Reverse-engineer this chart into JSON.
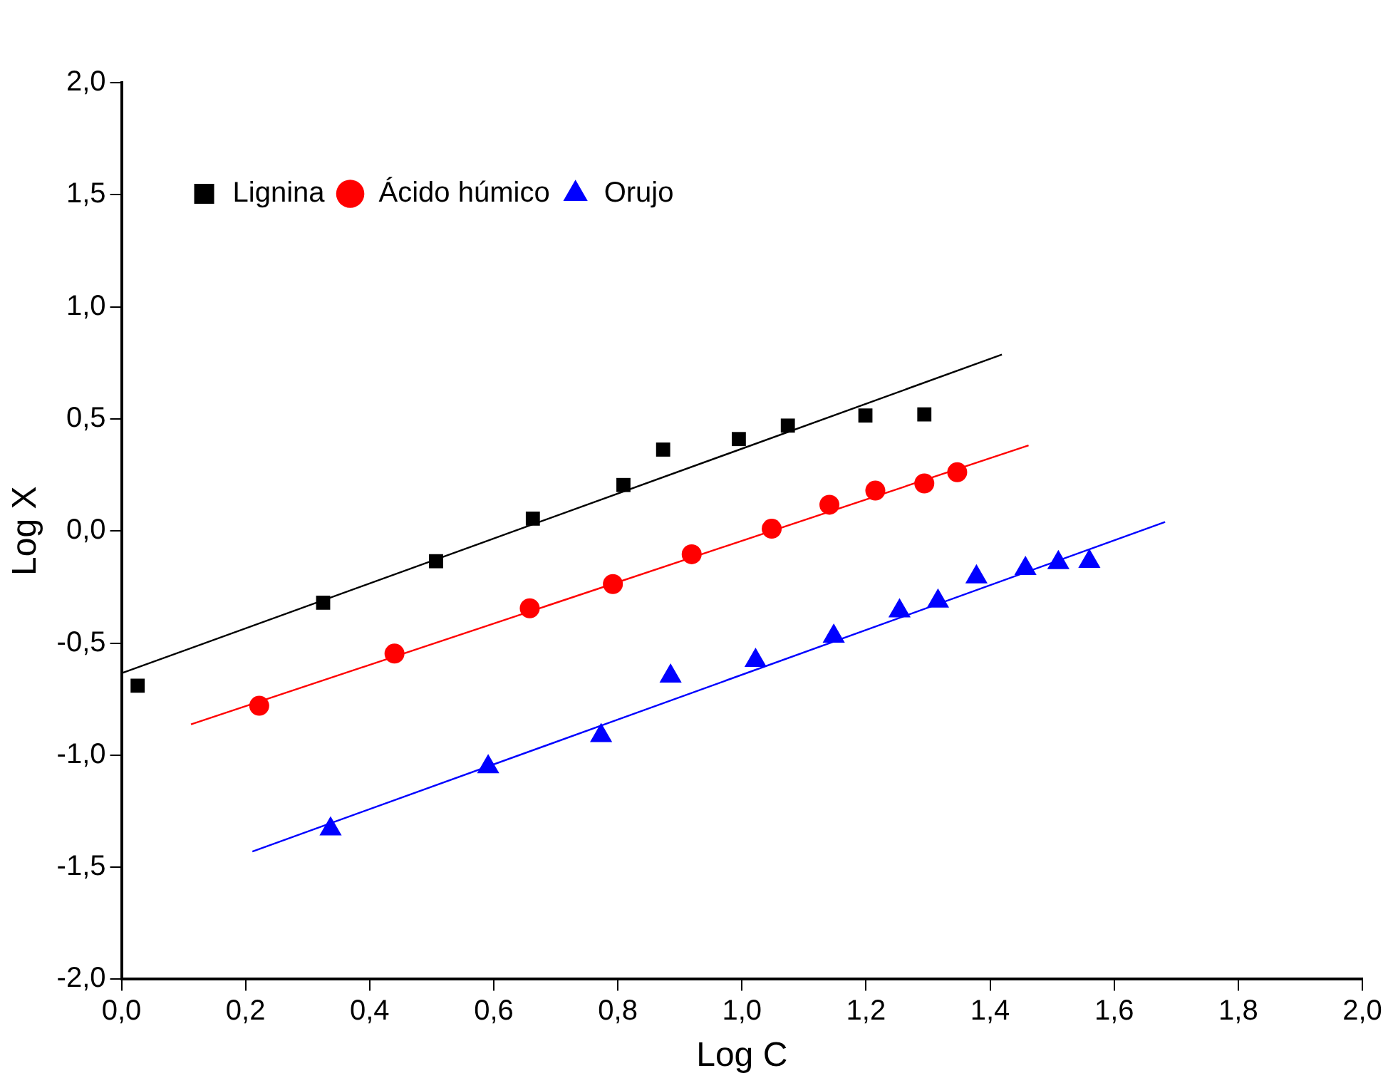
{
  "chart_data": {
    "type": "scatter",
    "xlabel": "Log C",
    "ylabel": "Log X",
    "xlim": [
      0,
      2
    ],
    "ylim": [
      -2,
      2
    ],
    "xticks": [
      {
        "value": 0,
        "label": "0,0"
      },
      {
        "value": 0.2,
        "label": "0,2"
      },
      {
        "value": 0.4,
        "label": "0,4"
      },
      {
        "value": 0.6,
        "label": "0,6"
      },
      {
        "value": 0.8,
        "label": "0,8"
      },
      {
        "value": 1,
        "label": "1,0"
      },
      {
        "value": 1.2,
        "label": "1,2"
      },
      {
        "value": 1.4,
        "label": "1,4"
      },
      {
        "value": 1.6,
        "label": "1,6"
      },
      {
        "value": 1.8,
        "label": "1,8"
      },
      {
        "value": 2,
        "label": "2,0"
      }
    ],
    "yticks": [
      {
        "value": -2,
        "label": "-2,0"
      },
      {
        "value": -1.5,
        "label": "-1,5"
      },
      {
        "value": -1,
        "label": "-1,0"
      },
      {
        "value": -0.5,
        "label": "-0,5"
      },
      {
        "value": 0,
        "label": "0,0"
      },
      {
        "value": 0.5,
        "label": "0,5"
      },
      {
        "value": 1,
        "label": "1,0"
      },
      {
        "value": 1.5,
        "label": "1,5"
      },
      {
        "value": 2,
        "label": "2,0"
      }
    ],
    "grid": false,
    "legend": "top left",
    "series": [
      {
        "name": "Lignina",
        "color": "#000000",
        "marker": "square",
        "x": [
          0.026,
          0.325,
          0.507,
          0.663,
          0.809,
          0.873,
          0.995,
          1.074,
          1.199,
          1.294
        ],
        "values": [
          -0.69,
          -0.32,
          -0.135,
          0.055,
          0.205,
          0.363,
          0.41,
          0.47,
          0.515,
          0.52
        ]
      },
      {
        "name": "Ácido húmico",
        "color": "#ff0000",
        "marker": "circle",
        "x": [
          0.222,
          0.44,
          0.658,
          0.792,
          0.919,
          1.048,
          1.141,
          1.215,
          1.294,
          1.347
        ],
        "values": [
          -0.78,
          -0.547,
          -0.345,
          -0.237,
          -0.104,
          0.01,
          0.117,
          0.18,
          0.212,
          0.262
        ]
      },
      {
        "name": "Orujo",
        "color": "#0000ff",
        "marker": "triangle",
        "x": [
          0.337,
          0.591,
          0.773,
          0.885,
          1.022,
          1.148,
          1.254,
          1.316,
          1.378,
          1.457,
          1.51,
          1.56
        ],
        "values": [
          -1.33,
          -1.052,
          -0.913,
          -0.648,
          -0.578,
          -0.47,
          -0.357,
          -0.313,
          -0.205,
          -0.168,
          -0.142,
          -0.136
        ]
      },
      {
        "type": "line",
        "color": "#000000",
        "marker": "none",
        "x": [
          0,
          1.419
        ],
        "values": [
          -0.635,
          0.787
        ]
      },
      {
        "type": "line",
        "color": "#ff0000",
        "marker": "none",
        "x": [
          0.112,
          1.462
        ],
        "values": [
          -0.863,
          0.382
        ]
      },
      {
        "type": "line",
        "color": "#0000ff",
        "marker": "none",
        "x": [
          0.211,
          1.682
        ],
        "values": [
          -1.43,
          0.04
        ]
      }
    ]
  }
}
